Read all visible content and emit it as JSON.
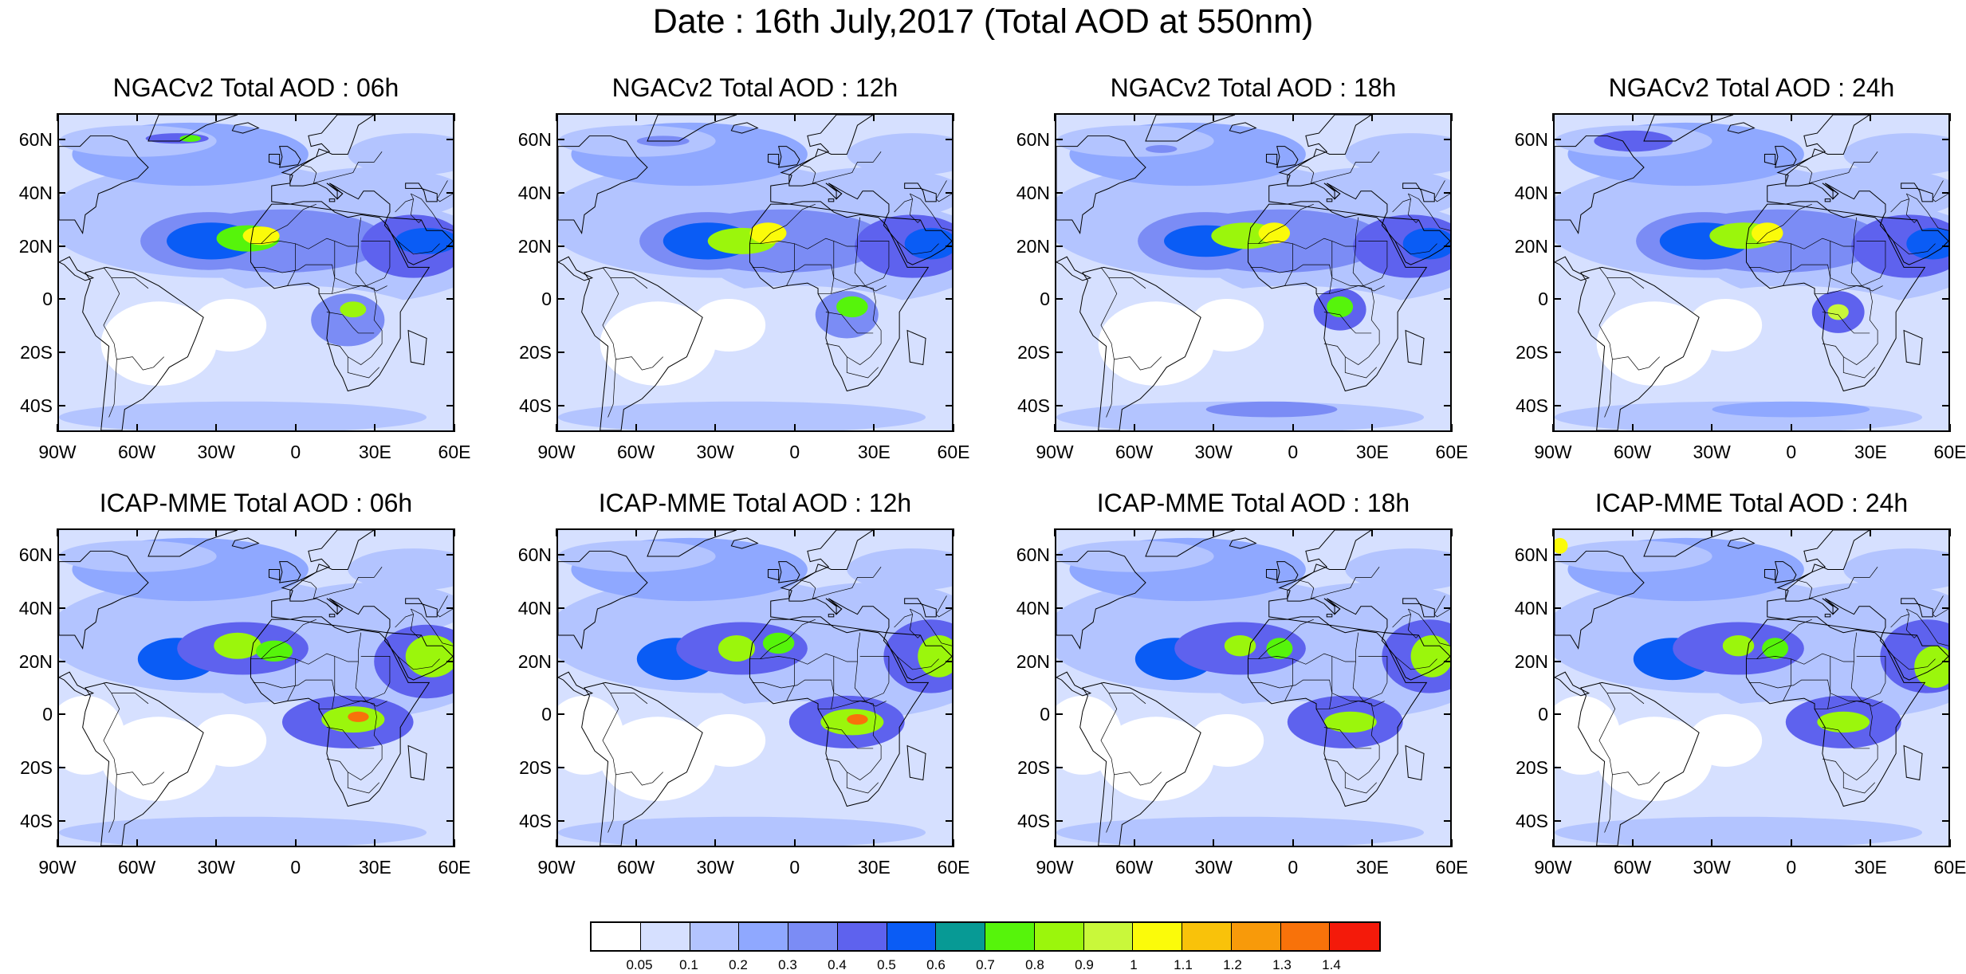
{
  "title": "Date : 16th July,2017 (Total AOD at 550nm)",
  "panels": [
    {
      "title": "NGACv2 Total AOD : 06h",
      "model": "NGACv2",
      "hour": "06h"
    },
    {
      "title": "NGACv2 Total AOD : 12h",
      "model": "NGACv2",
      "hour": "12h"
    },
    {
      "title": "NGACv2 Total AOD : 18h",
      "model": "NGACv2",
      "hour": "18h"
    },
    {
      "title": "NGACv2 Total AOD : 24h",
      "model": "NGACv2",
      "hour": "24h"
    },
    {
      "title": "ICAP-MME Total AOD : 06h",
      "model": "ICAP-MME",
      "hour": "06h"
    },
    {
      "title": "ICAP-MME Total AOD : 12h",
      "model": "ICAP-MME",
      "hour": "12h"
    },
    {
      "title": "ICAP-MME Total AOD : 18h",
      "model": "ICAP-MME",
      "hour": "18h"
    },
    {
      "title": "ICAP-MME Total AOD : 24h",
      "model": "ICAP-MME",
      "hour": "24h"
    }
  ],
  "map": {
    "lat_labels": [
      "60N",
      "40N",
      "20N",
      "0",
      "20S",
      "40S"
    ],
    "lon_labels": [
      "90W",
      "60W",
      "30W",
      "0",
      "30E",
      "60E"
    ],
    "lat_range": [
      -50,
      70
    ],
    "lon_range": [
      -90,
      60
    ],
    "land_outline_color": "#000000",
    "background_color": "#ffffff"
  },
  "colorbar": {
    "colors": [
      "#ffffff",
      "#d6e0ff",
      "#b3c4ff",
      "#8fa8ff",
      "#7b8cf5",
      "#5e62ee",
      "#0a5cf5",
      "#079a95",
      "#56f40b",
      "#9bf60c",
      "#c9f83a",
      "#fbfb0a",
      "#f9c20a",
      "#f89a0a",
      "#f8720a",
      "#f41a0a"
    ],
    "labels": [
      "0.05",
      "0.1",
      "0.2",
      "0.3",
      "0.4",
      "0.5",
      "0.6",
      "0.7",
      "0.8",
      "0.9",
      "1",
      "1.1",
      "1.2",
      "1.3",
      "1.4"
    ]
  }
}
